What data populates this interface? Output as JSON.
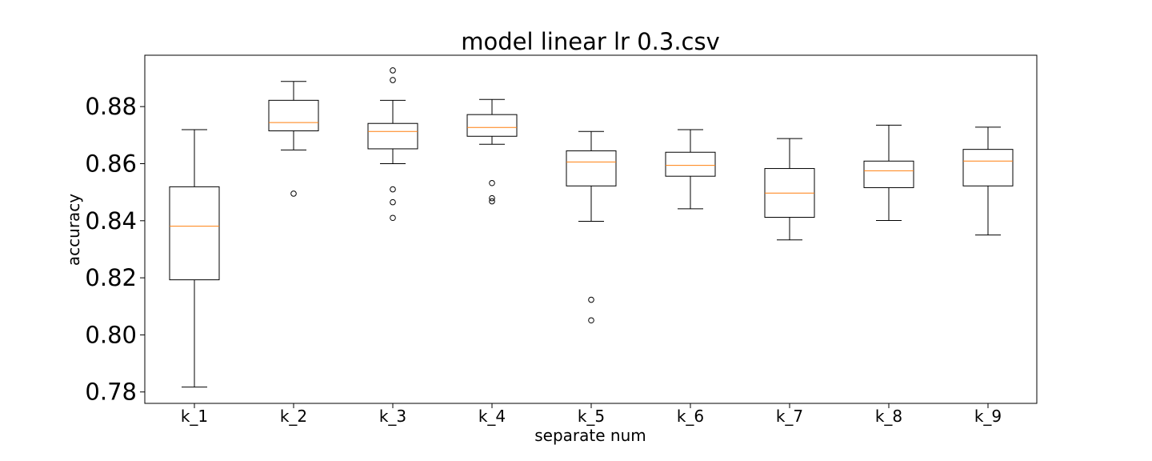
{
  "chart_data": {
    "type": "box",
    "title": "model linear lr 0.3.csv",
    "xlabel": "separate num",
    "ylabel": "accuracy",
    "ylim": [
      0.776,
      0.898
    ],
    "yticks": [
      0.78,
      0.8,
      0.82,
      0.84,
      0.86,
      0.88
    ],
    "ytick_labels": [
      "0.78",
      "0.80",
      "0.82",
      "0.84",
      "0.86",
      "0.88"
    ],
    "grid": false,
    "colors": {
      "box": "#000000",
      "median": "#ff7f0e",
      "outlier": "#000000"
    },
    "categories": [
      "k_1",
      "k_2",
      "k_3",
      "k_4",
      "k_5",
      "k_6",
      "k_7",
      "k_8",
      "k_9"
    ],
    "boxes": [
      {
        "whisker_low": 0.7817,
        "q1": 0.8193,
        "median": 0.8381,
        "q3": 0.8519,
        "whisker_high": 0.8719,
        "outliers": []
      },
      {
        "whisker_low": 0.8648,
        "q1": 0.8715,
        "median": 0.8744,
        "q3": 0.8822,
        "whisker_high": 0.8888,
        "outliers": [
          0.8495
        ]
      },
      {
        "whisker_low": 0.86,
        "q1": 0.8652,
        "median": 0.8713,
        "q3": 0.8741,
        "whisker_high": 0.8822,
        "outliers": [
          0.8927,
          0.8893,
          0.851,
          0.8465,
          0.841
        ]
      },
      {
        "whisker_low": 0.8668,
        "q1": 0.8696,
        "median": 0.8727,
        "q3": 0.8772,
        "whisker_high": 0.8825,
        "outliers": [
          0.8532,
          0.8479,
          0.8468
        ]
      },
      {
        "whisker_low": 0.8398,
        "q1": 0.8522,
        "median": 0.8606,
        "q3": 0.8645,
        "whisker_high": 0.8713,
        "outliers": [
          0.8123,
          0.8051
        ]
      },
      {
        "whisker_low": 0.8442,
        "q1": 0.8556,
        "median": 0.8594,
        "q3": 0.864,
        "whisker_high": 0.8719,
        "outliers": []
      },
      {
        "whisker_low": 0.8333,
        "q1": 0.8412,
        "median": 0.8497,
        "q3": 0.8583,
        "whisker_high": 0.8688,
        "outliers": []
      },
      {
        "whisker_low": 0.8401,
        "q1": 0.8516,
        "median": 0.8575,
        "q3": 0.8609,
        "whisker_high": 0.8735,
        "outliers": []
      },
      {
        "whisker_low": 0.835,
        "q1": 0.8522,
        "median": 0.8609,
        "q3": 0.865,
        "whisker_high": 0.8728,
        "outliers": []
      }
    ]
  }
}
